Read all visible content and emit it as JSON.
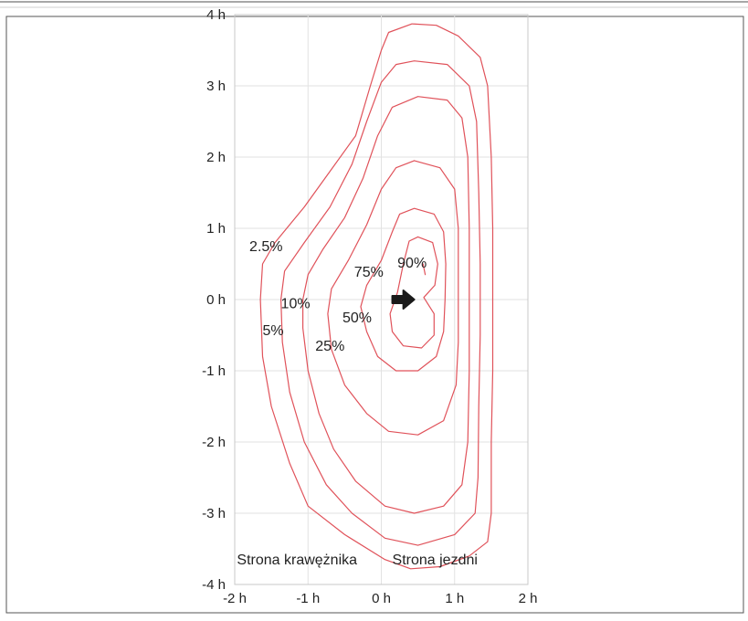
{
  "chart_data": {
    "type": "contour",
    "title": "",
    "xlabel": "",
    "ylabel": "",
    "xlim": [
      -2,
      2
    ],
    "ylim": [
      -4,
      4
    ],
    "x_ticks": [
      {
        "value": -2,
        "label": "-2 h"
      },
      {
        "value": -1,
        "label": "-1 h"
      },
      {
        "value": 0,
        "label": "0 h"
      },
      {
        "value": 1,
        "label": "1 h"
      },
      {
        "value": 2,
        "label": "2 h"
      }
    ],
    "y_ticks": [
      {
        "value": 4,
        "label": "4 h"
      },
      {
        "value": 3,
        "label": "3 h"
      },
      {
        "value": 2,
        "label": "2 h"
      },
      {
        "value": 1,
        "label": "1 h"
      },
      {
        "value": 0,
        "label": "0 h"
      },
      {
        "value": -1,
        "label": "-1 h"
      },
      {
        "value": -2,
        "label": "-2 h"
      },
      {
        "value": -3,
        "label": "-3 h"
      },
      {
        "value": -4,
        "label": "-4 h"
      }
    ],
    "grid": true,
    "line_color": "#e0525a",
    "contours": [
      {
        "label": "2.5%",
        "points": [
          [
            0.42,
            3.87
          ],
          [
            0.75,
            3.85
          ],
          [
            1.05,
            3.7
          ],
          [
            1.35,
            3.4
          ],
          [
            1.45,
            3.0
          ],
          [
            1.5,
            2.0
          ],
          [
            1.52,
            1.0
          ],
          [
            1.52,
            0
          ],
          [
            1.52,
            -1.0
          ],
          [
            1.5,
            -2.0
          ],
          [
            1.5,
            -3.0
          ],
          [
            1.45,
            -3.4
          ],
          [
            1.2,
            -3.6
          ],
          [
            0.8,
            -3.75
          ],
          [
            0.4,
            -3.78
          ],
          [
            0.05,
            -3.65
          ],
          [
            -0.5,
            -3.3
          ],
          [
            -1.0,
            -2.9
          ],
          [
            -1.25,
            -2.3
          ],
          [
            -1.5,
            -1.5
          ],
          [
            -1.62,
            -0.8
          ],
          [
            -1.65,
            0
          ],
          [
            -1.62,
            0.5
          ],
          [
            -1.45,
            0.8
          ],
          [
            -1.05,
            1.3
          ],
          [
            -0.7,
            1.8
          ],
          [
            -0.35,
            2.3
          ],
          [
            -0.15,
            3.0
          ],
          [
            0,
            3.5
          ],
          [
            0.1,
            3.75
          ],
          [
            0.42,
            3.87
          ]
        ]
      },
      {
        "label": "5%",
        "points": [
          [
            0.45,
            3.35
          ],
          [
            0.9,
            3.3
          ],
          [
            1.2,
            3.0
          ],
          [
            1.3,
            2.5
          ],
          [
            1.33,
            1.5
          ],
          [
            1.35,
            0.5
          ],
          [
            1.35,
            -0.5
          ],
          [
            1.33,
            -1.5
          ],
          [
            1.32,
            -2.5
          ],
          [
            1.28,
            -3.0
          ],
          [
            1.0,
            -3.3
          ],
          [
            0.5,
            -3.45
          ],
          [
            0.05,
            -3.35
          ],
          [
            -0.4,
            -3.0
          ],
          [
            -0.75,
            -2.6
          ],
          [
            -1.05,
            -2.0
          ],
          [
            -1.25,
            -1.3
          ],
          [
            -1.35,
            -0.6
          ],
          [
            -1.37,
            0
          ],
          [
            -1.32,
            0.4
          ],
          [
            -1.05,
            0.8
          ],
          [
            -0.7,
            1.3
          ],
          [
            -0.4,
            1.9
          ],
          [
            -0.2,
            2.5
          ],
          [
            0,
            3.05
          ],
          [
            0.2,
            3.3
          ],
          [
            0.45,
            3.35
          ]
        ]
      },
      {
        "label": "10%",
        "points": [
          [
            0.5,
            2.85
          ],
          [
            0.9,
            2.8
          ],
          [
            1.1,
            2.55
          ],
          [
            1.18,
            2.0
          ],
          [
            1.2,
            1.0
          ],
          [
            1.2,
            0
          ],
          [
            1.2,
            -1.0
          ],
          [
            1.18,
            -2.0
          ],
          [
            1.1,
            -2.6
          ],
          [
            0.85,
            -2.9
          ],
          [
            0.45,
            -3.0
          ],
          [
            0.05,
            -2.9
          ],
          [
            -0.35,
            -2.55
          ],
          [
            -0.65,
            -2.1
          ],
          [
            -0.85,
            -1.6
          ],
          [
            -1.0,
            -1.0
          ],
          [
            -1.07,
            -0.4
          ],
          [
            -1.07,
            0
          ],
          [
            -1.0,
            0.35
          ],
          [
            -0.8,
            0.7
          ],
          [
            -0.5,
            1.15
          ],
          [
            -0.25,
            1.7
          ],
          [
            -0.05,
            2.3
          ],
          [
            0.15,
            2.7
          ],
          [
            0.5,
            2.85
          ]
        ]
      },
      {
        "label": "25%",
        "points": [
          [
            0.45,
            1.95
          ],
          [
            0.8,
            1.85
          ],
          [
            1.0,
            1.55
          ],
          [
            1.05,
            1.0
          ],
          [
            1.05,
            0.2
          ],
          [
            1.05,
            -0.6
          ],
          [
            1.02,
            -1.2
          ],
          [
            0.85,
            -1.7
          ],
          [
            0.5,
            -1.9
          ],
          [
            0.1,
            -1.85
          ],
          [
            -0.2,
            -1.6
          ],
          [
            -0.5,
            -1.2
          ],
          [
            -0.68,
            -0.7
          ],
          [
            -0.73,
            -0.2
          ],
          [
            -0.68,
            0.15
          ],
          [
            -0.45,
            0.55
          ],
          [
            -0.2,
            1.05
          ],
          [
            0,
            1.55
          ],
          [
            0.2,
            1.85
          ],
          [
            0.45,
            1.95
          ]
        ]
      },
      {
        "label": "50%",
        "points": [
          [
            0.45,
            1.28
          ],
          [
            0.72,
            1.2
          ],
          [
            0.85,
            0.95
          ],
          [
            0.88,
            0.5
          ],
          [
            0.87,
            0
          ],
          [
            0.85,
            -0.45
          ],
          [
            0.75,
            -0.8
          ],
          [
            0.5,
            -1.0
          ],
          [
            0.2,
            -1.0
          ],
          [
            -0.05,
            -0.8
          ],
          [
            -0.2,
            -0.45
          ],
          [
            -0.28,
            -0.1
          ],
          [
            -0.2,
            0.2
          ],
          [
            0,
            0.55
          ],
          [
            0.15,
            0.95
          ],
          [
            0.25,
            1.2
          ],
          [
            0.45,
            1.28
          ]
        ]
      },
      {
        "label": "75%",
        "points": [
          [
            0.5,
            0.88
          ],
          [
            0.7,
            0.8
          ],
          [
            0.77,
            0.5
          ],
          [
            0.73,
            0.2
          ],
          [
            0.58,
            0.03
          ],
          [
            0.72,
            -0.2
          ],
          [
            0.72,
            -0.5
          ],
          [
            0.55,
            -0.68
          ],
          [
            0.3,
            -0.65
          ],
          [
            0.15,
            -0.45
          ],
          [
            0.12,
            -0.2
          ],
          [
            0.22,
            0.1
          ],
          [
            0.3,
            0.5
          ],
          [
            0.38,
            0.82
          ],
          [
            0.5,
            0.88
          ]
        ]
      },
      {
        "label": "90%",
        "points": [
          [
            0.57,
            0.5
          ],
          [
            0.6,
            0.35
          ]
        ]
      }
    ],
    "annotations": [
      {
        "text": "2.5%",
        "x": -1.8,
        "y": 0.68
      },
      {
        "text": "5%",
        "x": -1.62,
        "y": -0.5
      },
      {
        "text": "10%",
        "x": -1.37,
        "y": -0.12
      },
      {
        "text": "25%",
        "x": -0.9,
        "y": -0.72
      },
      {
        "text": "50%",
        "x": -0.53,
        "y": -0.32
      },
      {
        "text": "75%",
        "x": -0.37,
        "y": 0.32
      },
      {
        "text": "90%",
        "x": 0.22,
        "y": 0.45
      }
    ],
    "direction_arrow": {
      "x": 0.15,
      "y": 0,
      "dx": 0.3
    },
    "side_labels": [
      {
        "text": "Strona krawężnika",
        "x": -1.97,
        "y": -3.72
      },
      {
        "text": "Strona jezdni",
        "x": 0.15,
        "y": -3.72
      }
    ]
  }
}
